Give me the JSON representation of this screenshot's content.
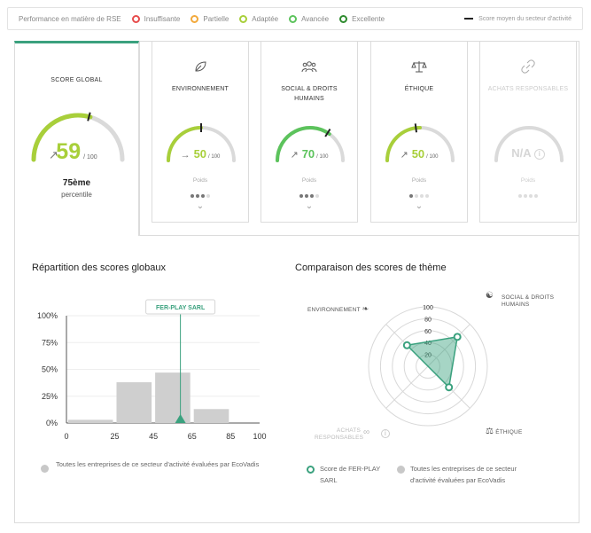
{
  "legend": {
    "title": "Performance en matière de RSE",
    "items": [
      {
        "label": "Insuffisante",
        "color": "#e74c4c"
      },
      {
        "label": "Partielle",
        "color": "#f2a93b"
      },
      {
        "label": "Adaptée",
        "color": "#a8cf3a"
      },
      {
        "label": "Avancée",
        "color": "#5cc35c"
      },
      {
        "label": "Excellente",
        "color": "#2e8b2e"
      }
    ],
    "average_label": "Score moyen du secteur d'activité"
  },
  "global_score": {
    "title": "SCORE GLOBAL",
    "score": "59",
    "score_value": 59,
    "denominator": "/ 100",
    "trend_icon": "arrow-up-right-icon",
    "percentile": "75ème",
    "percentile_label": "percentile",
    "sector_average": 58,
    "color": "#a8cf3a"
  },
  "themes": [
    {
      "name": "ENVIRONNEMENT",
      "icon": "leaf-icon",
      "score": "50",
      "score_value": 50,
      "denominator": "/ 100",
      "trend": "→",
      "color": "#a8cf3a",
      "sector_average": 50,
      "poids_label": "Poids",
      "weight": 3
    },
    {
      "name": "SOCIAL & DROITS HUMAINS",
      "icon": "people-icon",
      "score": "70",
      "score_value": 70,
      "denominator": "/ 100",
      "trend": "↗",
      "color": "#5cc35c",
      "sector_average": 68,
      "poids_label": "Poids",
      "weight": 3
    },
    {
      "name": "ÉTHIQUE",
      "icon": "scales-icon",
      "score": "50",
      "score_value": 50,
      "denominator": "/ 100",
      "trend": "↗",
      "color": "#a8cf3a",
      "sector_average": 46,
      "poids_label": "Poids",
      "weight": 1
    },
    {
      "name": "ACHATS RESPONSABLES",
      "icon": "link-icon",
      "score": "N/A",
      "denominator": "",
      "trend": "",
      "color": "#d6d6d6",
      "poids_label": "Poids",
      "weight": 0,
      "disabled": true
    }
  ],
  "histogram": {
    "title": "Répartition des scores globaux",
    "marker_label": "FER-PLAY SARL",
    "legend": "Toutes les entreprises de ce secteur d'activité évaluées par EcoVadis"
  },
  "radar": {
    "title": "Comparaison des scores de thème",
    "axis_labels": [
      "ENVIRONNEMENT",
      "SOCIAL & DROITS HUMAINS",
      "ÉTHIQUE",
      "ACHATS RESPONSABLES"
    ],
    "legend_company": "Score de FER-PLAY SARL",
    "legend_all": "Toutes les entreprises de ce secteur d'activité évaluées par EcoVadis"
  },
  "chart_data": [
    {
      "type": "bar",
      "title": "Répartition des scores globaux",
      "bins": [
        [
          0,
          25
        ],
        [
          25,
          45
        ],
        [
          45,
          65
        ],
        [
          65,
          85
        ],
        [
          85,
          100
        ]
      ],
      "values": [
        3,
        38,
        47,
        13,
        0
      ],
      "xticks": [
        "0",
        "25",
        "45",
        "65",
        "85",
        "100"
      ],
      "yticks": [
        "0%",
        "25%",
        "50%",
        "75%",
        "100%"
      ],
      "ylim": [
        0,
        100
      ],
      "marker": {
        "x": 59,
        "label": "FER-PLAY SARL"
      },
      "series_name": "Toutes les entreprises de ce secteur d'activité évaluées par EcoVadis"
    },
    {
      "type": "radar",
      "title": "Comparaison des scores de thème",
      "axes": [
        "SOCIAL & DROITS HUMAINS",
        "ÉTHIQUE",
        "ACHATS RESPONSABLES",
        "ENVIRONNEMENT"
      ],
      "rticks": [
        "20",
        "40",
        "60",
        "80",
        "100"
      ],
      "rlim": [
        0,
        100
      ],
      "series": [
        {
          "name": "Score de FER-PLAY SARL",
          "values": [
            70,
            50,
            0,
            50
          ]
        }
      ]
    }
  ]
}
